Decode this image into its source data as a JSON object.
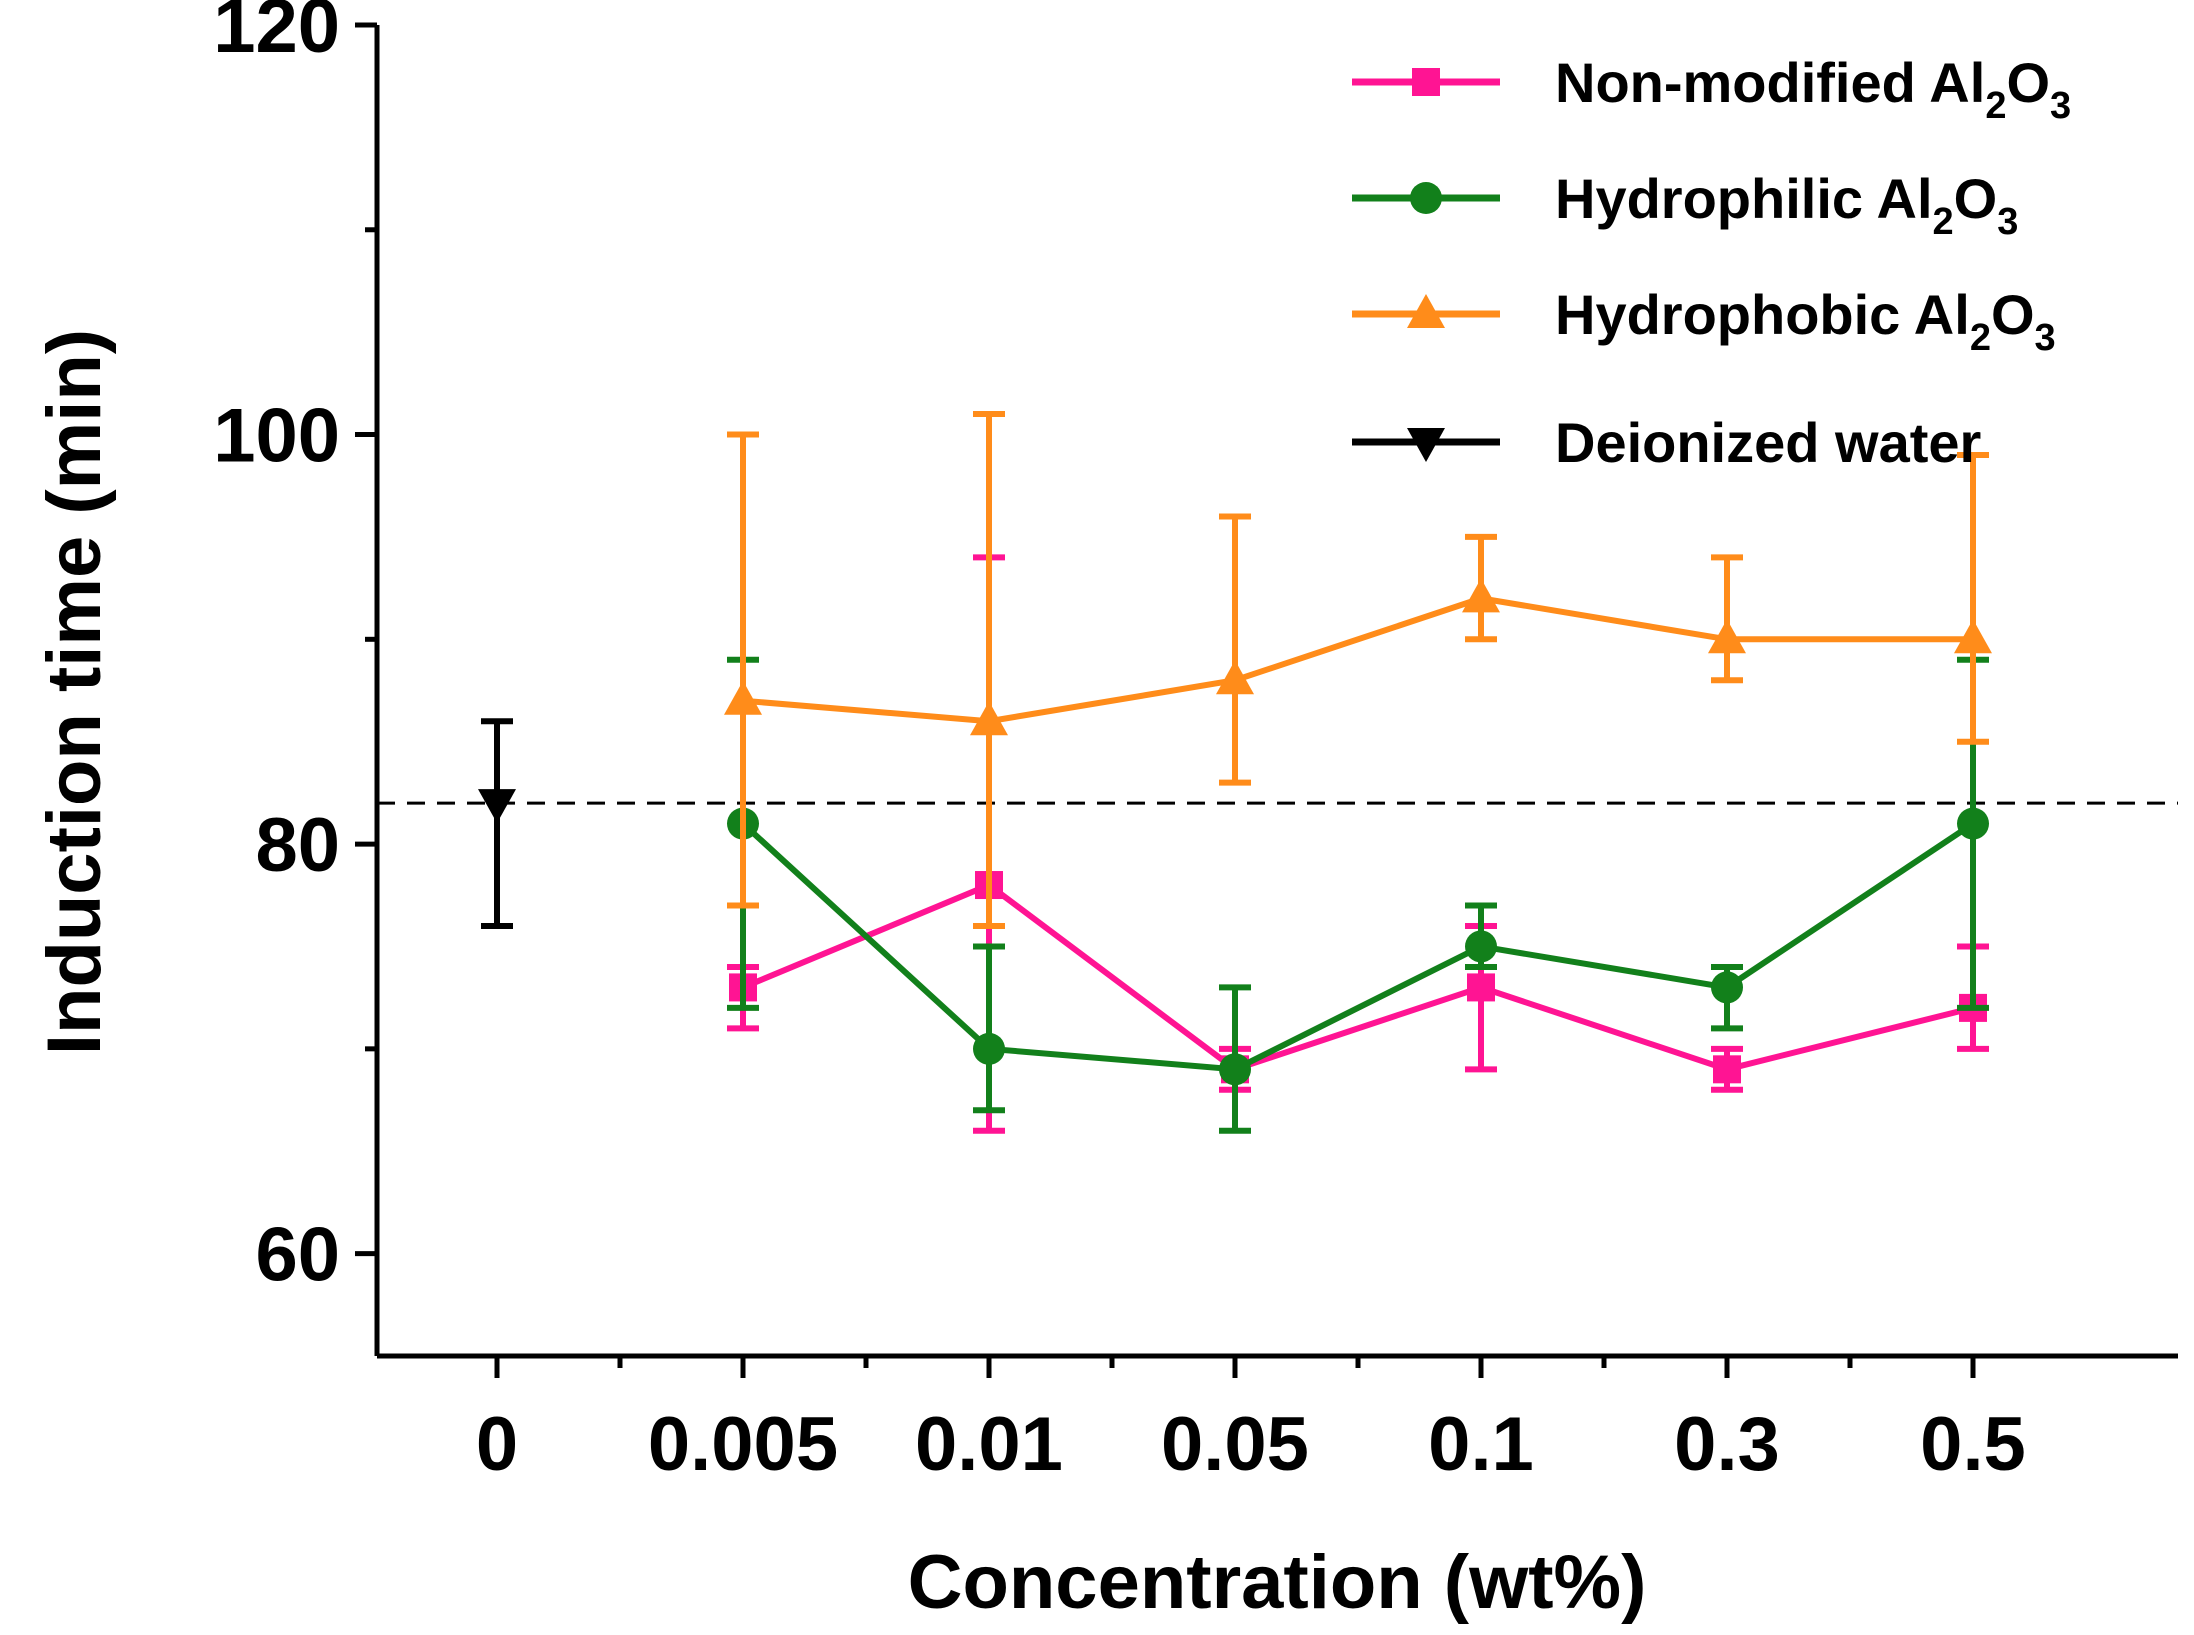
{
  "chart_data": {
    "type": "line",
    "xlabel": "Concentration (wt%)",
    "ylabel": "Induction time (min)",
    "ylim": [
      55,
      120
    ],
    "yticks_major": [
      60,
      80,
      100,
      120
    ],
    "yticks_minor": [
      70,
      90,
      110
    ],
    "categories": [
      "0",
      "0.005",
      "0.01",
      "0.05",
      "0.1",
      "0.3",
      "0.5"
    ],
    "reference_line": {
      "label": "Deionized water",
      "value": 82,
      "style": "dashed"
    },
    "series": [
      {
        "name": "Non-modified Al2O3",
        "legend": {
          "prefix": "Non-modified Al",
          "sub1": "2",
          "mid": "O",
          "sub2": "3"
        },
        "color": "#ff1493",
        "marker": "square",
        "x": [
          "0.005",
          "0.01",
          "0.05",
          "0.1",
          "0.3",
          "0.5"
        ],
        "values": [
          73,
          78,
          69,
          73,
          69,
          72
        ],
        "err_low": [
          71,
          66,
          68,
          69,
          68,
          70
        ],
        "err_high": [
          74,
          94,
          70,
          76,
          70,
          75
        ]
      },
      {
        "name": "Hydrophilic Al2O3",
        "legend": {
          "prefix": "Hydrophilic Al",
          "sub1": "2",
          "mid": "O",
          "sub2": "3"
        },
        "color": "#12801b",
        "marker": "circle",
        "x": [
          "0.005",
          "0.01",
          "0.05",
          "0.1",
          "0.3",
          "0.5"
        ],
        "values": [
          81,
          70,
          69,
          75,
          73,
          81
        ],
        "err_low": [
          72,
          67,
          66,
          74,
          71,
          72
        ],
        "err_high": [
          89,
          75,
          73,
          77,
          74,
          89
        ]
      },
      {
        "name": "Hydrophobic Al2O3",
        "legend": {
          "prefix": "Hydrophobic Al",
          "sub1": "2",
          "mid": "O",
          "sub2": "3"
        },
        "color": "#ff8c1a",
        "marker": "triangle-up",
        "x": [
          "0.005",
          "0.01",
          "0.05",
          "0.1",
          "0.3",
          "0.5"
        ],
        "values": [
          87,
          86,
          88,
          92,
          90,
          90
        ],
        "err_low": [
          77,
          76,
          83,
          90,
          88,
          85
        ],
        "err_high": [
          100,
          101,
          96,
          95,
          94,
          99
        ]
      },
      {
        "name": "Deionized water",
        "legend": {
          "prefix": "Deionized water",
          "sub1": "",
          "mid": "",
          "sub2": ""
        },
        "color": "#000000",
        "marker": "triangle-down",
        "x": [
          "0"
        ],
        "values": [
          82
        ],
        "err_low": [
          76
        ],
        "err_high": [
          86
        ]
      }
    ]
  }
}
